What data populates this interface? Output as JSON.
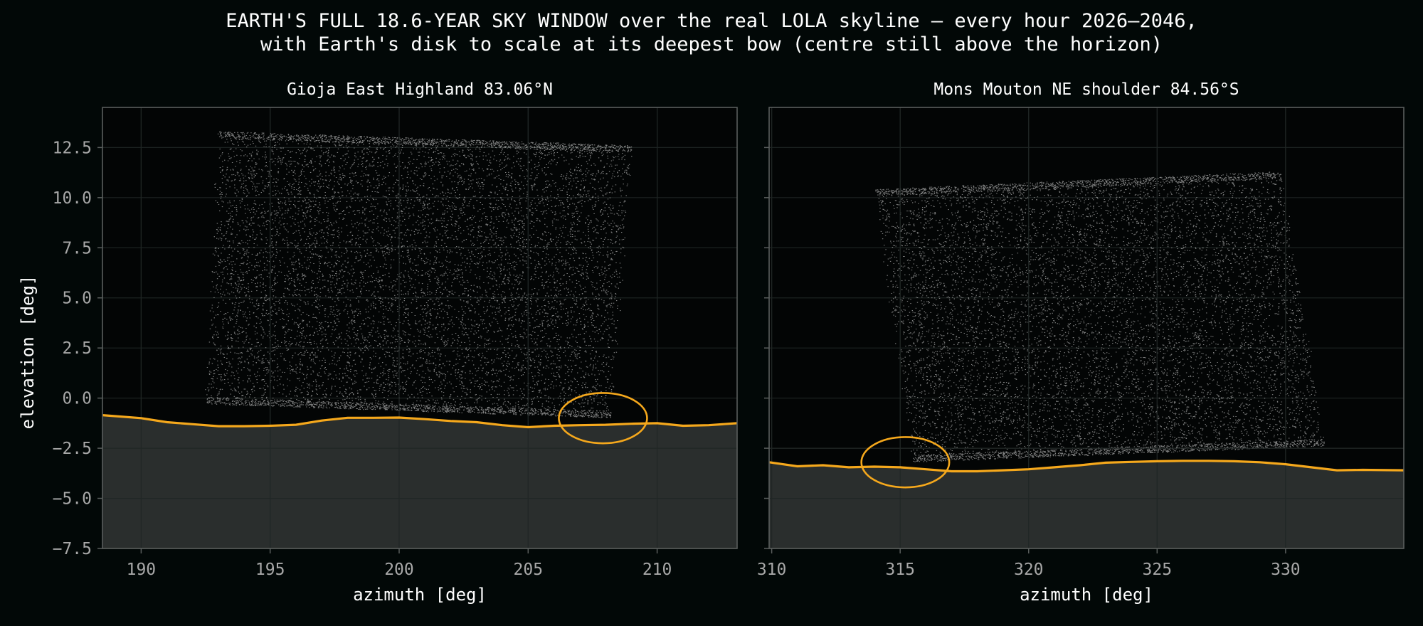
{
  "figure": {
    "title_line1": "EARTH'S FULL 18.6-YEAR SKY WINDOW over the real LOLA skyline — every hour 2026–2046,",
    "title_line2": "with Earth's disk to scale at its deepest bow (centre still above the horizon)"
  },
  "colors": {
    "background": "#020807",
    "axes_face": "#030505",
    "terrain_fill": "#2a2e2d",
    "horizon_line": "#f5a81c",
    "points": "#e6e6e6",
    "grid": "#1c2221",
    "spine": "#5a5e5d"
  },
  "chart_data": [
    {
      "type": "scatter",
      "title": "Gioja East Highland 83.06°N",
      "xlabel": "azimuth [deg]",
      "ylabel": "elevation [deg]",
      "xlim": [
        188.5,
        213.1
      ],
      "ylim": [
        -7.5,
        14.5
      ],
      "xticks": [
        190,
        195,
        200,
        205,
        210
      ],
      "yticks": [
        -7.5,
        -5.0,
        -2.5,
        0.0,
        2.5,
        5.0,
        7.5,
        10.0,
        12.5
      ],
      "ytick_labels": [
        "−7.5",
        "−5.0",
        "−2.5",
        "0.0",
        "2.5",
        "5.0",
        "7.5",
        "10.0",
        "12.5"
      ],
      "grid": true,
      "sky_window_corners": {
        "top_left": [
          193.0,
          13.3
        ],
        "top_right": [
          209.0,
          12.6
        ],
        "bottom_right": [
          208.2,
          -1.0
        ],
        "bottom_left": [
          192.5,
          -0.3
        ]
      },
      "horizon": {
        "azimuth": [
          188.5,
          190,
          191,
          192,
          193,
          194,
          195,
          196,
          197,
          198,
          199,
          200,
          201,
          202,
          203,
          204,
          205,
          206,
          207,
          208,
          209,
          210,
          211,
          212,
          213.1
        ],
        "elevation": [
          -0.85,
          -1.0,
          -1.2,
          -1.3,
          -1.4,
          -1.4,
          -1.38,
          -1.33,
          -1.12,
          -0.98,
          -0.98,
          -0.97,
          -1.05,
          -1.14,
          -1.2,
          -1.35,
          -1.45,
          -1.38,
          -1.35,
          -1.33,
          -1.28,
          -1.25,
          -1.38,
          -1.35,
          -1.25
        ]
      },
      "earth_disk": {
        "center_az": 207.9,
        "center_el": -1.0,
        "radius_deg": 0.95
      }
    },
    {
      "type": "scatter",
      "title": "Mons Mouton NE shoulder 84.56°S",
      "xlabel": "azimuth [deg]",
      "ylabel": "",
      "xlim": [
        309.9,
        334.6
      ],
      "ylim": [
        -7.5,
        14.5
      ],
      "xticks": [
        310,
        315,
        320,
        325,
        330
      ],
      "yticks": [
        -7.5,
        -5.0,
        -2.5,
        0.0,
        2.5,
        5.0,
        7.5,
        10.0,
        12.5
      ],
      "ytick_labels": [],
      "grid": true,
      "sky_window_corners": {
        "top_left": [
          314.0,
          10.4
        ],
        "top_right": [
          329.8,
          11.3
        ],
        "bottom_right": [
          331.5,
          -2.4
        ],
        "bottom_left": [
          315.5,
          -3.2
        ]
      },
      "horizon": {
        "azimuth": [
          309.9,
          311,
          312,
          313,
          314,
          315,
          316,
          317,
          318,
          319,
          320,
          321,
          322,
          323,
          324,
          325,
          326,
          327,
          328,
          329,
          330,
          331,
          332,
          333,
          334.6
        ],
        "elevation": [
          -3.2,
          -3.4,
          -3.35,
          -3.45,
          -3.42,
          -3.45,
          -3.55,
          -3.65,
          -3.65,
          -3.6,
          -3.55,
          -3.45,
          -3.35,
          -3.22,
          -3.18,
          -3.15,
          -3.13,
          -3.13,
          -3.15,
          -3.2,
          -3.3,
          -3.45,
          -3.6,
          -3.58,
          -3.6
        ]
      },
      "earth_disk": {
        "center_az": 315.2,
        "center_el": -3.2,
        "radius_deg": 0.95
      }
    }
  ]
}
